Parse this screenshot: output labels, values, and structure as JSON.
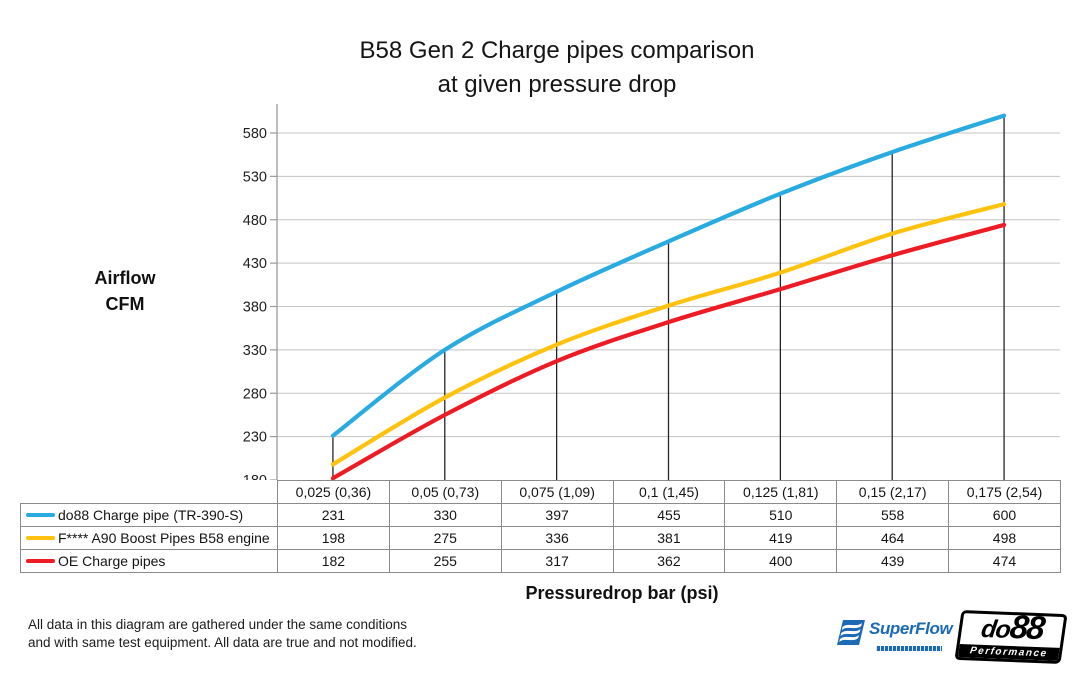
{
  "title": {
    "line1": "B58 Gen 2 Charge pipes comparison",
    "line2": "at given pressure drop"
  },
  "chart_data": {
    "type": "line",
    "title": "B58 Gen 2 Charge pipes comparison at given pressure drop",
    "ylabel": "Airflow CFM",
    "xlabel": "Pressuredrop bar (psi)",
    "categories": [
      "0,025 (0,36)",
      "0,05 (0,73)",
      "0,075 (1,09)",
      "0,1 (1,45)",
      "0,125 (1,81)",
      "0,15 (2,17)",
      "0,175 (2,54)"
    ],
    "series": [
      {
        "name": "do88 Charge pipe (TR-390-S)",
        "color": "#29ABE2",
        "values": [
          231,
          330,
          397,
          455,
          510,
          558,
          600
        ]
      },
      {
        "name": "F**** A90 Boost Pipes B58 engine",
        "color": "#FFC20E",
        "values": [
          198,
          275,
          336,
          381,
          419,
          464,
          498
        ]
      },
      {
        "name": "OE Charge pipes",
        "color": "#ED1C24",
        "values": [
          182,
          255,
          317,
          362,
          400,
          439,
          474
        ]
      }
    ],
    "y_ticks": [
      180,
      230,
      280,
      330,
      380,
      430,
      480,
      530,
      580
    ],
    "ylim": [
      180,
      605
    ],
    "grid": "horizontal-only",
    "legend_position": "table-left-column",
    "smooth_lines": true,
    "droplines_color": "#262626",
    "gridline_color": "#c3c3c3",
    "axis_color": "#9a9a9a"
  },
  "y_axis_title": {
    "line1": "Airflow",
    "line2": "CFM"
  },
  "x_axis_title": "Pressuredrop bar (psi)",
  "footer": {
    "line1": "All data in this diagram are gathered under the same conditions",
    "line2": "and with same test equipment. All data are true and not modified."
  },
  "logos": {
    "superflow": {
      "name": "SuperFlow",
      "color": "#1c6ab3"
    },
    "do88": {
      "part1": "do",
      "part2": "88",
      "subtext": "Performance"
    }
  }
}
